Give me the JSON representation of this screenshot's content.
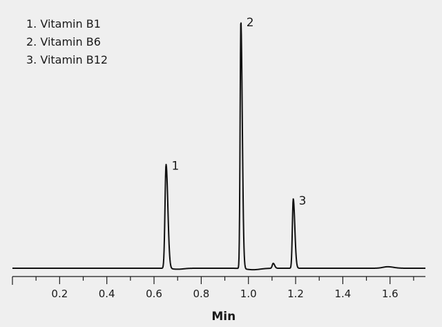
{
  "chart_data": {
    "type": "line",
    "title": "",
    "xlabel": "Min",
    "ylabel": "",
    "xlim": [
      0.0,
      1.75
    ],
    "ylim": [
      0,
      100
    ],
    "grid": false,
    "x_ticks": [
      0.2,
      0.4,
      0.6,
      0.8,
      1.0,
      1.2,
      1.4,
      1.6
    ],
    "x_tick_labels": [
      "0.2",
      "0.4",
      "0.6",
      "0.8",
      "1.0",
      "1.2",
      "1.4",
      "1.6"
    ],
    "legend": {
      "placement": "top-left",
      "entries": [
        "1. Vitamin B1",
        "2. Vitamin B6",
        "3. Vitamin B12"
      ]
    },
    "peaks": [
      {
        "label": "1",
        "time": 0.651,
        "height": 42
      },
      {
        "label": "2",
        "time": 0.968,
        "height": 100
      },
      {
        "label": "3",
        "time": 1.19,
        "height": 28
      }
    ],
    "minor_peaks": [
      {
        "time": 1.105,
        "height": 2
      },
      {
        "time": 1.59,
        "height": 0.6
      }
    ],
    "baseline": 0
  }
}
